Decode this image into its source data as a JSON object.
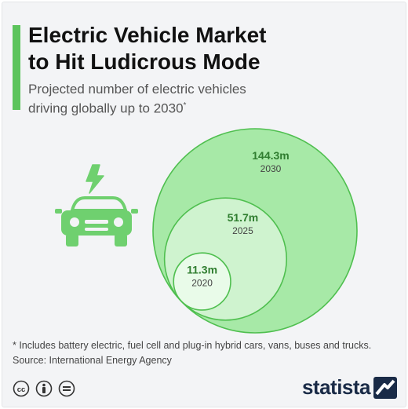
{
  "header": {
    "title_line1": "Electric Vehicle Market",
    "title_line2": "to Hit Ludicrous Mode",
    "subtitle_line1": "Projected number of electric vehicles",
    "subtitle_line2": "driving globally up to 2030",
    "subtitle_mark": "*"
  },
  "chart_data": {
    "type": "bubble",
    "categories": [
      "2020",
      "2025",
      "2030"
    ],
    "values": [
      11.3,
      51.7,
      144.3
    ],
    "value_labels": [
      "11.3m",
      "51.7m",
      "144.3m"
    ],
    "unit": "millions of vehicles"
  },
  "colors": {
    "accent": "#5cc45c",
    "circle_2030": "#a7e9a7",
    "circle_2025": "#cff3cf",
    "circle_2020": "#e9fbe9",
    "value_text": "#2f7d2f",
    "icon": "#6fd06f"
  },
  "icons": {
    "illustration": "electric-car-icon",
    "license": [
      "creative-commons-icon",
      "attribution-icon",
      "no-derivatives-icon"
    ],
    "brand": "statista-logo-icon"
  },
  "footer": {
    "footnote": "* Includes battery electric, fuel cell and plug-in hybrid cars, vans, buses and trucks.",
    "source": "Source: International Energy Agency",
    "brand": "statista"
  }
}
